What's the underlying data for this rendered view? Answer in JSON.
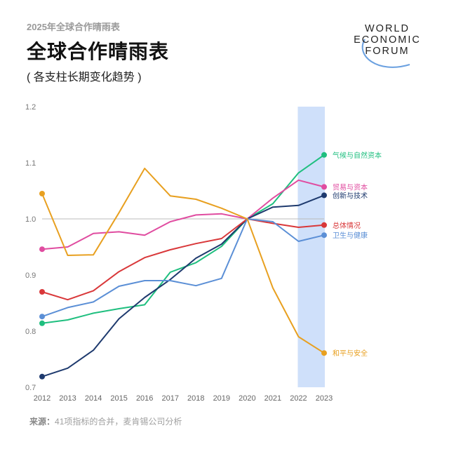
{
  "header": {
    "kicker": "2025年全球合作晴雨表",
    "title": "全球合作晴雨表",
    "subtitle": "( 各支柱长期变化趋势 )"
  },
  "logo": {
    "lines": [
      "WORLD",
      "ECONOMIC",
      "FORUM"
    ]
  },
  "footer": {
    "source_label": "来源：",
    "source_text": "41项指标的合并，麦肯锡公司分析"
  },
  "chart_data": {
    "type": "line",
    "title": "",
    "xlabel": "",
    "ylabel": "",
    "x": [
      2012,
      2013,
      2014,
      2015,
      2016,
      2017,
      2018,
      2019,
      2020,
      2021,
      2022,
      2023
    ],
    "x_tick_labels": [
      "2012",
      "2013",
      "2014",
      "2015",
      "2016",
      "2017",
      "2018",
      "2019",
      "2020",
      "2021",
      "2022",
      "2023"
    ],
    "ylim": [
      0.7,
      1.2
    ],
    "y_ticks": [
      "0.7",
      "0.8",
      "0.9",
      "1.0",
      "1.1",
      "1.2"
    ],
    "reference_line": 1.0,
    "highlight_range": [
      2022,
      2023
    ],
    "highlight_color": "#cfe0fa",
    "grid": false,
    "legend": "inline-right",
    "series": [
      {
        "name": "气候与自然资本",
        "color": "#1fbf7f",
        "values": [
          0.814,
          0.82,
          0.832,
          0.84,
          0.847,
          0.905,
          0.922,
          0.951,
          1.0,
          1.027,
          1.082,
          1.114
        ]
      },
      {
        "name": "贸易与资本",
        "color": "#e04ca0",
        "values": [
          0.946,
          0.95,
          0.974,
          0.977,
          0.971,
          0.995,
          1.007,
          1.009,
          1.0,
          1.037,
          1.069,
          1.057
        ]
      },
      {
        "name": "创新与技术",
        "color": "#1e3a6e",
        "values": [
          0.719,
          0.734,
          0.766,
          0.822,
          0.86,
          0.892,
          0.93,
          0.955,
          1.0,
          1.021,
          1.024,
          1.042
        ]
      },
      {
        "name": "总体情况",
        "color": "#d9383a",
        "values": [
          0.87,
          0.856,
          0.872,
          0.906,
          0.931,
          0.945,
          0.956,
          0.965,
          1.0,
          0.992,
          0.985,
          0.989
        ]
      },
      {
        "name": "卫生与健康",
        "color": "#5b8fd6",
        "values": [
          0.826,
          0.842,
          0.852,
          0.88,
          0.89,
          0.89,
          0.881,
          0.894,
          1.0,
          0.995,
          0.96,
          0.971
        ]
      },
      {
        "name": "和平与安全",
        "color": "#e8a020",
        "values": [
          1.045,
          0.935,
          0.936,
          1.011,
          1.09,
          1.041,
          1.035,
          1.019,
          1.0,
          0.877,
          0.79,
          0.761
        ]
      }
    ]
  }
}
